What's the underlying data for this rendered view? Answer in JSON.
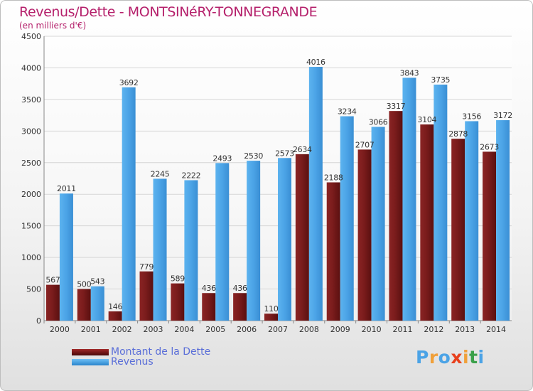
{
  "header": {
    "title": "Revenus/Dette - MONTSINéRY-TONNEGRANDE",
    "subtitle": "(en milliers d'€)"
  },
  "colors": {
    "title": "#b5206b",
    "dette": "#7a1c1c",
    "revenus": "#4ba3e6",
    "legend_text": "#5a6ed8"
  },
  "logo": {
    "text": "Proxiti",
    "letter_colors": [
      "#4ba3e6",
      "#f0a03a",
      "#4ba3e6",
      "#e8401c",
      "#f0a03a",
      "#3aa04a",
      "#4ba3e6"
    ]
  },
  "chart_data": {
    "type": "bar",
    "categories": [
      "2000",
      "2001",
      "2002",
      "2003",
      "2004",
      "2005",
      "2006",
      "2007",
      "2008",
      "2009",
      "2010",
      "2011",
      "2012",
      "2013",
      "2014"
    ],
    "series": [
      {
        "name": "Montant de la Dette",
        "color": "#7a1c1c",
        "values": [
          567,
          500,
          146,
          779,
          589,
          436,
          436,
          110,
          2634,
          2188,
          2707,
          3317,
          3104,
          2878,
          2673
        ],
        "labels": [
          "567",
          "500",
          "146",
          "779",
          "589",
          "436",
          "436",
          "110",
          "2634",
          "2188",
          "2707",
          "3317",
          "3104",
          "2878",
          "2673"
        ]
      },
      {
        "name": "Revenus",
        "color": "#4ba3e6",
        "values": [
          2011,
          543,
          3692,
          2245,
          2222,
          2493,
          2530,
          2573,
          4016,
          3234,
          3066,
          3843,
          3735,
          3156,
          3172
        ],
        "labels": [
          "2011",
          "543",
          "3692",
          "2245",
          "2222",
          "2493",
          "2530",
          "2573",
          "4016",
          "3234",
          "3066",
          "3843",
          "3735",
          "3156",
          "3172"
        ]
      }
    ],
    "yticks": [
      0,
      500,
      1000,
      1500,
      2000,
      2500,
      3000,
      3500,
      4000,
      4500
    ],
    "ylim": [
      0,
      4500
    ],
    "grid": true,
    "legend": "bottom-left"
  }
}
